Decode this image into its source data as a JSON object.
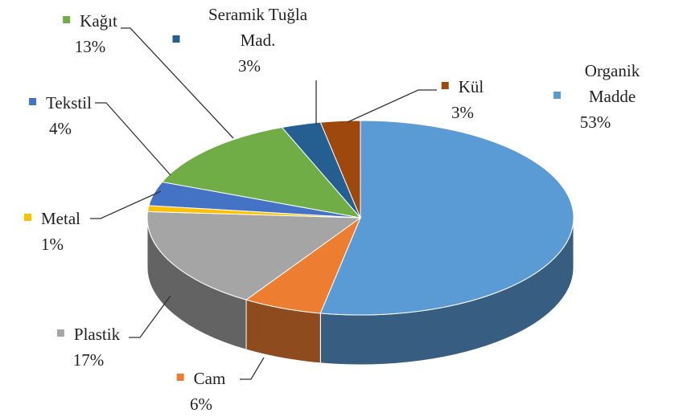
{
  "chart_data": {
    "type": "pie",
    "categories": [
      "Organik Madde",
      "Cam",
      "Plastik",
      "Metal",
      "Tekstil",
      "Kağıt",
      "Seramik Tuğla Mad.",
      "Kül"
    ],
    "values": [
      53,
      6,
      17,
      1,
      4,
      13,
      3,
      3
    ],
    "value_labels": [
      "53%",
      "6%",
      "17%",
      "1%",
      "4%",
      "13%",
      "3%",
      "3%"
    ],
    "colors": [
      "#5b9bd5",
      "#ed7d31",
      "#a5a5a5",
      "#ffc000",
      "#4472c4",
      "#70ad47",
      "#255e91",
      "#9e480e"
    ],
    "3d": true
  }
}
